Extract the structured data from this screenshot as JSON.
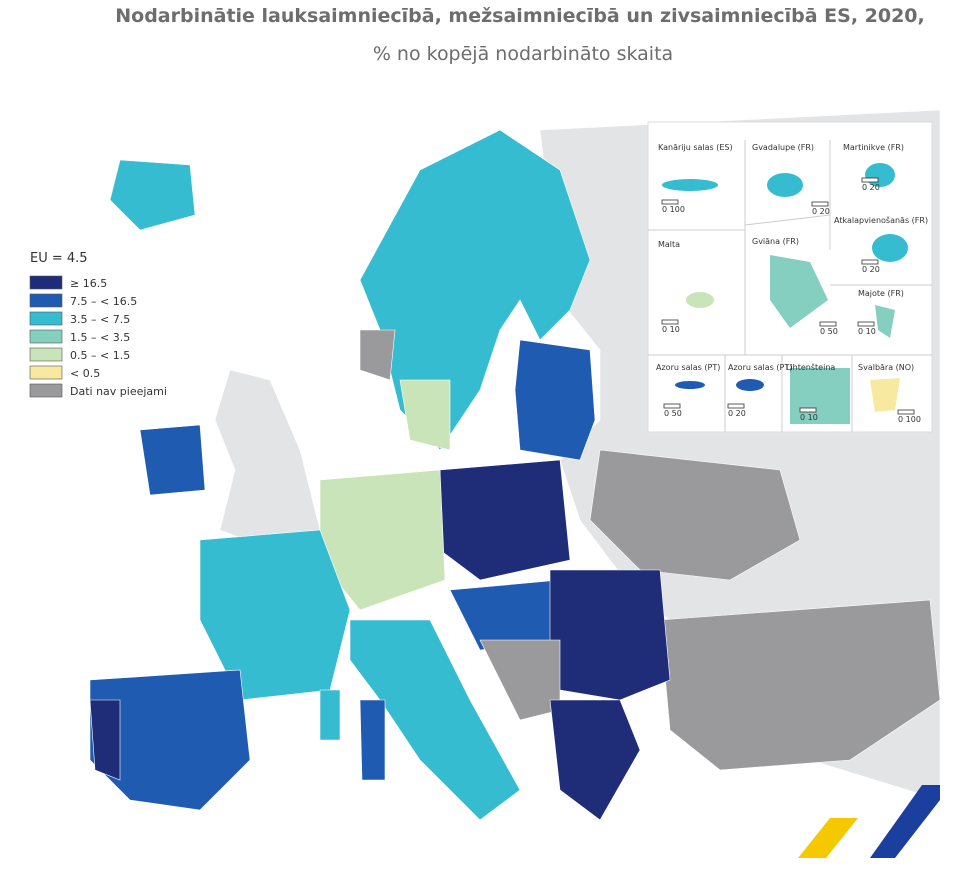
{
  "title": "Nodarbinātie lauksaimniecībā, mežsaimniecībā un zivsaimniecībā ES, 2020,",
  "subtitle": "% no kopējā nodarbināto skaita",
  "legend": {
    "title": "EU = 4.5",
    "items": [
      {
        "label": "≥ 16.5",
        "color": "#1f2c78"
      },
      {
        "label": "7.5 – < 16.5",
        "color": "#1f5bb0"
      },
      {
        "label": "3.5 – < 7.5",
        "color": "#35bcd0"
      },
      {
        "label": "1.5 – < 3.5",
        "color": "#84cfbf"
      },
      {
        "label": "0.5 – < 1.5",
        "color": "#c9e4b8"
      },
      {
        "label": "< 0.5",
        "color": "#f7e9a0"
      },
      {
        "label": "Dati nav pieejami",
        "color": "#9a9a9c"
      }
    ]
  },
  "insets": [
    {
      "label": "Kanāriju salas (ES)",
      "scale": "0 100"
    },
    {
      "label": "Gvadalupe (FR)",
      "scale": "0 20"
    },
    {
      "label": "Martinikve (FR)",
      "scale": "0 20"
    },
    {
      "label": "Atkalapvienošanās (FR)",
      "scale": "0 20"
    },
    {
      "label": "Malta",
      "scale": "0 10"
    },
    {
      "label": "Gviāna (FR)",
      "scale": "0 50"
    },
    {
      "label": "Majote (FR)",
      "scale": "0 10"
    },
    {
      "label": "Azoru salas (PT)",
      "scale": "0 50"
    },
    {
      "label": "Azoru salas (PT)",
      "scale": "0 20"
    },
    {
      "label": "Lihtenšteina",
      "scale": "0 10"
    },
    {
      "label": "Svalbāra (NO)",
      "scale": "0 100"
    }
  ]
}
